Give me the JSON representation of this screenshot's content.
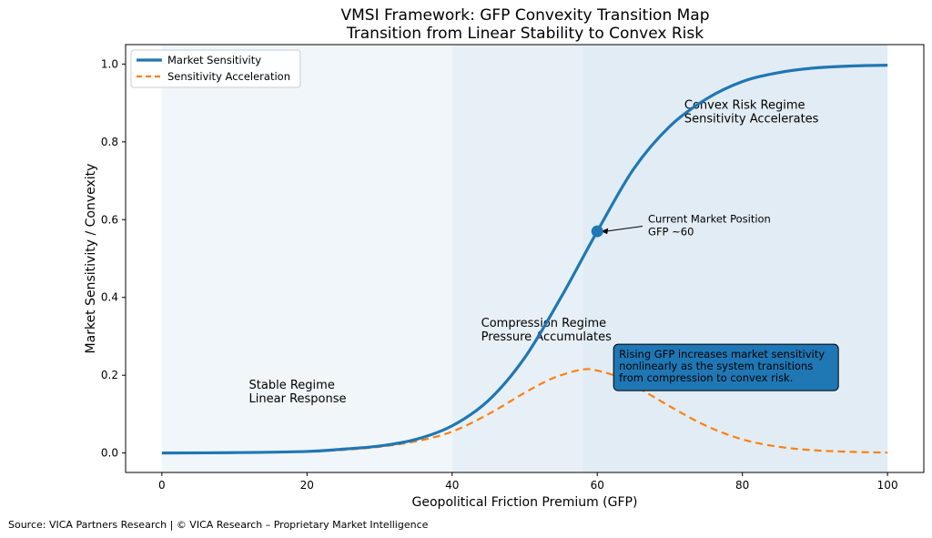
{
  "chart_data": {
    "type": "line",
    "title": "VMSI Framework: GFP Convexity Transition Map",
    "subtitle": "Transition from Linear Stability to Convex Risk",
    "xlabel": "Geopolitical Friction Premium (GFP)",
    "ylabel": "Market Sensitivity / Convexity",
    "xlim": [
      -5,
      105
    ],
    "ylim": [
      -0.05,
      1.05
    ],
    "xticks": [
      0,
      20,
      40,
      60,
      80,
      100
    ],
    "yticks": [
      0.0,
      0.2,
      0.4,
      0.6,
      0.8,
      1.0
    ],
    "tick_labels_x": [
      "0",
      "20",
      "40",
      "60",
      "80",
      "100"
    ],
    "tick_labels_y": [
      "0.0",
      "0.2",
      "0.4",
      "0.6",
      "0.8",
      "1.0"
    ],
    "grid": false,
    "legend_position": "top-left",
    "colors": {
      "sensitivity": "#1f77b4",
      "acceleration": "#ff7f0e",
      "regime_stable": "#f1f6fa",
      "regime_compression": "#e8f0f7",
      "regime_convex": "#e1ecf4",
      "callout_fill": "#1f77b4"
    },
    "regimes": [
      {
        "name": "stable",
        "x_range": [
          0,
          40
        ],
        "label_lines": [
          "Stable Regime",
          "Linear Response"
        ],
        "label_x": 12,
        "label_y": 0.165
      },
      {
        "name": "compression",
        "x_range": [
          40,
          58
        ],
        "label_lines": [
          "Compression Regime",
          "Pressure Accumulates"
        ],
        "label_x": 44,
        "label_y": 0.325
      },
      {
        "name": "convex",
        "x_range": [
          58,
          100
        ],
        "label_lines": [
          "Convex Risk Regime",
          "Sensitivity Accelerates"
        ],
        "label_x": 72,
        "label_y": 0.885
      }
    ],
    "series": [
      {
        "name": "Market Sensitivity",
        "style": "solid",
        "x": [
          0,
          10,
          20,
          25,
          30,
          35,
          40,
          45,
          50,
          55,
          60,
          65,
          70,
          75,
          80,
          85,
          90,
          95,
          100
        ],
        "values": [
          0.0,
          0.001,
          0.004,
          0.01,
          0.018,
          0.035,
          0.07,
          0.135,
          0.245,
          0.4,
          0.57,
          0.73,
          0.84,
          0.91,
          0.955,
          0.978,
          0.99,
          0.995,
          0.997
        ]
      },
      {
        "name": "Sensitivity Acceleration",
        "style": "dashed",
        "x": [
          0,
          10,
          20,
          25,
          30,
          35,
          40,
          45,
          50,
          53,
          55,
          58,
          60,
          63,
          65,
          70,
          75,
          80,
          85,
          90,
          95,
          100
        ],
        "values": [
          0.0,
          0.001,
          0.004,
          0.008,
          0.016,
          0.03,
          0.055,
          0.1,
          0.155,
          0.185,
          0.2,
          0.215,
          0.212,
          0.195,
          0.175,
          0.12,
          0.07,
          0.035,
          0.016,
          0.007,
          0.003,
          0.001
        ]
      }
    ],
    "annotations": [
      {
        "type": "point",
        "x": 60,
        "y": 0.57,
        "lines": [
          "Current Market Position",
          "GFP ~60"
        ],
        "text_x": 67,
        "text_y": 0.59
      },
      {
        "type": "callout",
        "x": 62,
        "y": 0.175,
        "lines": [
          "Rising GFP increases market sensitivity",
          "nonlinearly as the system transitions",
          "from compression to convex risk."
        ]
      }
    ]
  },
  "footer": {
    "source": "Source: VICA Partners Research | © VICA Research – Proprietary Market Intelligence"
  }
}
